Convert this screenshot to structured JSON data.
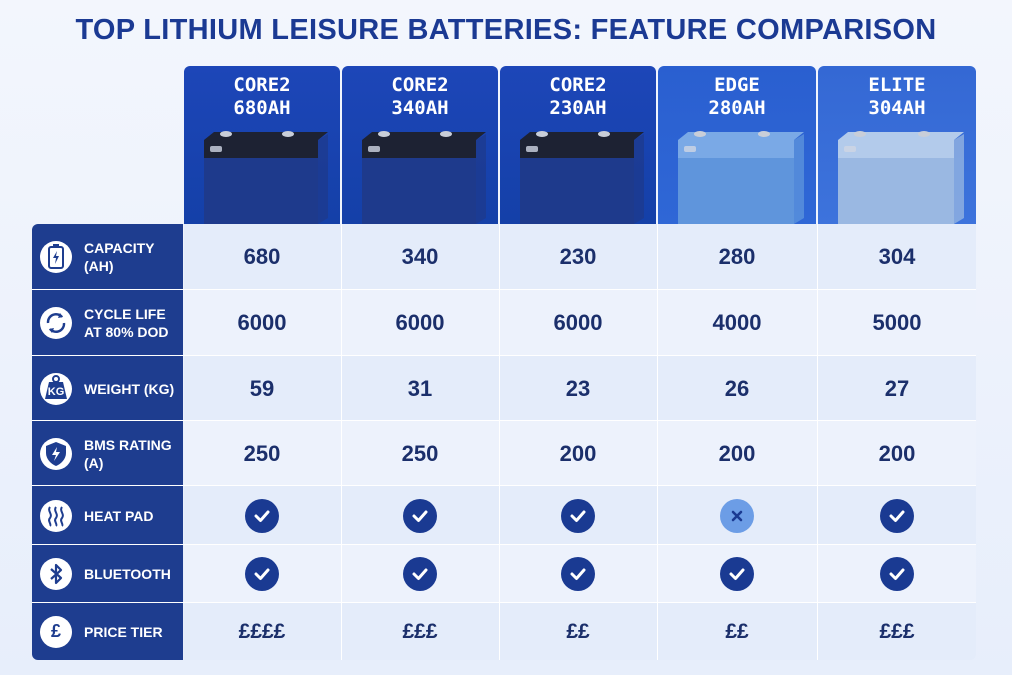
{
  "title": "TOP LITHIUM LEISURE BATTERIES: FEATURE COMPARISON",
  "colors": {
    "title": "#1b3a93",
    "label_bg": "#1e3d8f",
    "check_bg": "#1a3a92",
    "cross_bg": "#6c9de6"
  },
  "products": [
    {
      "line1": "CORE2",
      "line2": "680AH",
      "header_color": "#1d46b8",
      "battery_color": "#1e3a8c",
      "battery_lid": "#1d2233"
    },
    {
      "line1": "CORE2",
      "line2": "340AH",
      "header_color": "#1d46b8",
      "battery_color": "#1e3a8c",
      "battery_lid": "#1d2233"
    },
    {
      "line1": "CORE2",
      "line2": "230AH",
      "header_color": "#1d46b8",
      "battery_color": "#1e3a8c",
      "battery_lid": "#1d2233"
    },
    {
      "line1": "EDGE",
      "line2": "280AH",
      "header_color": "#2a5fd0",
      "battery_color": "#5f95dc",
      "battery_lid": "#7aa9e6"
    },
    {
      "line1": "ELITE",
      "line2": "304AH",
      "header_color": "#3468d4",
      "battery_color": "#9ab8e2",
      "battery_lid": "#b3cbeb"
    }
  ],
  "rows": [
    {
      "label": "CAPACITY (AH)",
      "icon": "battery-icon",
      "values": [
        "680",
        "340",
        "230",
        "280",
        "304"
      ]
    },
    {
      "label": "CYCLE LIFE AT 80% DOD",
      "icon": "cycle-arrows-icon",
      "values": [
        "6000",
        "6000",
        "6000",
        "4000",
        "5000"
      ]
    },
    {
      "label": "WEIGHT (KG)",
      "icon": "weight-kg-icon",
      "icon_text": "KG",
      "values": [
        "59",
        "31",
        "23",
        "26",
        "27"
      ]
    },
    {
      "label": "BMS RATING (A)",
      "icon": "shield-bolt-icon",
      "values": [
        "250",
        "250",
        "200",
        "200",
        "200"
      ]
    },
    {
      "label": "HEAT PAD",
      "icon": "heat-waves-icon",
      "values": [
        "yes",
        "yes",
        "yes",
        "no",
        "yes"
      ]
    },
    {
      "label": "BLUETOOTH",
      "icon": "bluetooth-icon",
      "values": [
        "yes",
        "yes",
        "yes",
        "yes",
        "yes"
      ]
    },
    {
      "label": "PRICE TIER",
      "icon": "pound-icon",
      "icon_text": "£",
      "values": [
        "££££",
        "£££",
        "££",
        "££",
        "£££"
      ]
    }
  ]
}
